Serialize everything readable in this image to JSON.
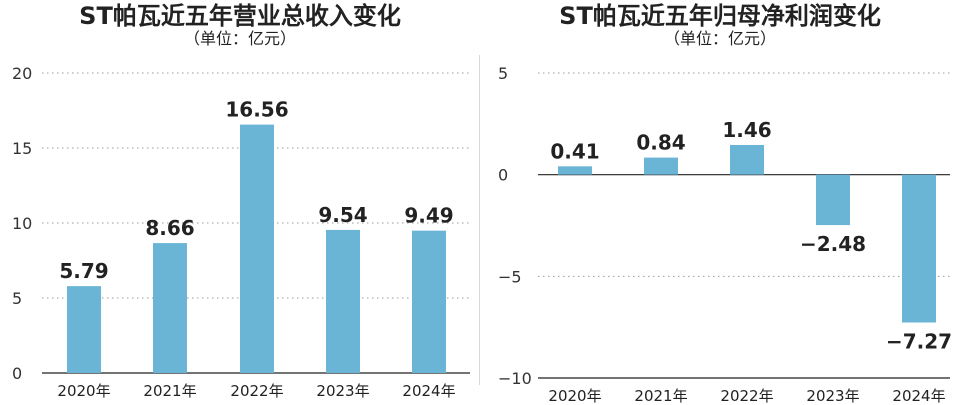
{
  "chart_data": [
    {
      "type": "bar",
      "title": "ST帕瓦近五年营业总收入变化",
      "subtitle": "（单位：亿元）",
      "categories": [
        "2020年",
        "2021年",
        "2022年",
        "2023年",
        "2024年"
      ],
      "values": [
        5.79,
        8.66,
        16.56,
        9.54,
        9.49
      ],
      "value_labels": [
        "5.79",
        "8.66",
        "16.56",
        "9.54",
        "9.49"
      ],
      "ylim": [
        0,
        20
      ],
      "yticks": [
        0,
        5,
        10,
        15,
        20
      ],
      "ytick_labels": [
        "0",
        "5",
        "10",
        "15",
        "20"
      ],
      "grid": true,
      "bar_color": "#6ab4d6"
    },
    {
      "type": "bar",
      "title": "ST帕瓦近五年归母净利润变化",
      "subtitle": "（单位：亿元）",
      "categories": [
        "2020年",
        "2021年",
        "2022年",
        "2023年",
        "2024年"
      ],
      "values": [
        0.41,
        0.84,
        1.46,
        -2.48,
        -7.27
      ],
      "value_labels": [
        "0.41",
        "0.84",
        "1.46",
        "−2.48",
        "−7.27"
      ],
      "ylim": [
        -10,
        5
      ],
      "yticks": [
        -10,
        -5,
        0,
        5
      ],
      "ytick_labels": [
        "−10",
        "−5",
        "0",
        "5"
      ],
      "grid": true,
      "bar_color": "#6ab4d6"
    }
  ]
}
